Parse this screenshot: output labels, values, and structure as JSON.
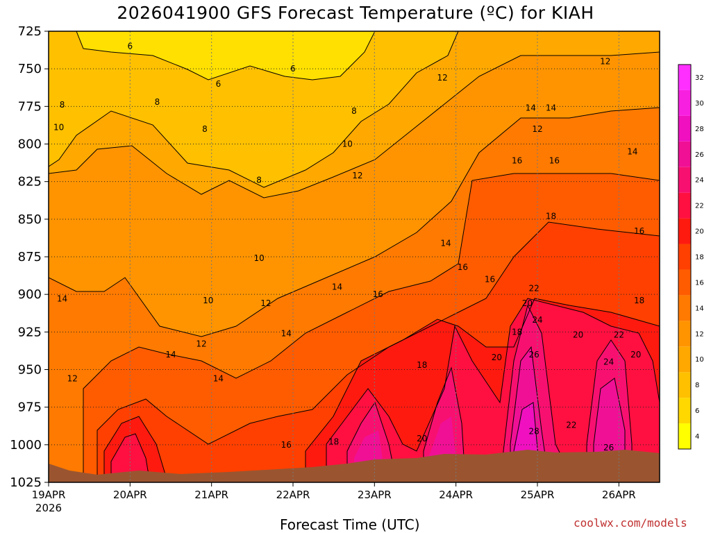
{
  "chart_data": {
    "type": "heatmap",
    "title": "2026041900 GFS Forecast Temperature (ºC) for KIAH",
    "xlabel": "Forecast Time (UTC)",
    "ylabel": "",
    "credit": "coolwx.com/models",
    "y_axis": {
      "scale": "pressure",
      "range": [
        725,
        1025
      ],
      "inverted": true,
      "ticks": [
        725,
        750,
        775,
        800,
        825,
        850,
        875,
        900,
        925,
        950,
        975,
        1000,
        1025
      ]
    },
    "x_axis": {
      "range": [
        "2026-04-19T00",
        "2026-04-26T12"
      ],
      "ticks": [
        {
          "date": "2026-04-19",
          "label": "19APR",
          "sublabel": "2026"
        },
        {
          "date": "2026-04-20",
          "label": "20APR",
          "sublabel": ""
        },
        {
          "date": "2026-04-21",
          "label": "21APR",
          "sublabel": ""
        },
        {
          "date": "2026-04-22",
          "label": "22APR",
          "sublabel": ""
        },
        {
          "date": "2026-04-23",
          "label": "23APR",
          "sublabel": ""
        },
        {
          "date": "2026-04-24",
          "label": "24APR",
          "sublabel": ""
        },
        {
          "date": "2026-04-25",
          "label": "25APR",
          "sublabel": ""
        },
        {
          "date": "2026-04-26",
          "label": "26APR",
          "sublabel": ""
        }
      ]
    },
    "grid": true,
    "colorbar": {
      "placement": "right",
      "levels": [
        4,
        6,
        8,
        10,
        12,
        14,
        16,
        18,
        20,
        22,
        24,
        26,
        28,
        30,
        32
      ],
      "colors": [
        "#ffff00",
        "#ffd800",
        "#ffc000",
        "#ffa800",
        "#ff9400",
        "#ff7a00",
        "#ff5c00",
        "#ff4000",
        "#ff1a10",
        "#ff1040",
        "#f81070",
        "#f01095",
        "#f010c0",
        "#f820e0",
        "#ff30ff"
      ]
    },
    "terrain_color": "#9a5530",
    "series": [
      {
        "name": "",
        "temperature_c": [
          {
            "time": "2026-04-19T00",
            "p": 725,
            "t": 9
          },
          {
            "time": "2026-04-19T06",
            "p": 725,
            "t": 6
          },
          {
            "time": "2026-04-20T12",
            "p": 725,
            "t": 5
          },
          {
            "time": "2026-04-21T12",
            "p": 725,
            "t": 5
          },
          {
            "time": "2026-04-22T12",
            "p": 725,
            "t": 5
          },
          {
            "time": "2026-04-23T12",
            "p": 725,
            "t": 9
          },
          {
            "time": "2026-04-24T12",
            "p": 725,
            "t": 11
          },
          {
            "time": "2026-04-25T12",
            "p": 725,
            "t": 11
          },
          {
            "time": "2026-04-26T12",
            "p": 725,
            "t": 12
          },
          {
            "time": "2026-04-19T12",
            "p": 850,
            "t": 13
          },
          {
            "time": "2026-04-20T12",
            "p": 850,
            "t": 12
          },
          {
            "time": "2026-04-21T12",
            "p": 850,
            "t": 10
          },
          {
            "time": "2026-04-22T12",
            "p": 850,
            "t": 12
          },
          {
            "time": "2026-04-23T12",
            "p": 850,
            "t": 14
          },
          {
            "time": "2026-04-24T12",
            "p": 850,
            "t": 17
          },
          {
            "time": "2026-04-25T12",
            "p": 850,
            "t": 18
          },
          {
            "time": "2026-04-26T12",
            "p": 850,
            "t": 17
          },
          {
            "time": "2026-04-19T12",
            "p": 975,
            "t": 12
          },
          {
            "time": "2026-04-20T00",
            "p": 1000,
            "t": 20
          },
          {
            "time": "2026-04-21T12",
            "p": 975,
            "t": 14
          },
          {
            "time": "2026-04-22T12",
            "p": 975,
            "t": 16
          },
          {
            "time": "2026-04-23T00",
            "p": 1000,
            "t": 22
          },
          {
            "time": "2026-04-24T00",
            "p": 1000,
            "t": 24
          },
          {
            "time": "2026-04-25T00",
            "p": 1000,
            "t": 28
          },
          {
            "time": "2026-04-26T00",
            "p": 1000,
            "t": 26
          }
        ]
      }
    ],
    "contour_labels": [
      {
        "time": "2026-04-20T00",
        "p": 735,
        "label": "6"
      },
      {
        "time": "2026-04-22T00",
        "p": 750,
        "label": "6"
      },
      {
        "time": "2026-04-21T02",
        "p": 760,
        "label": "6"
      },
      {
        "time": "2026-04-19T04",
        "p": 774,
        "label": "8"
      },
      {
        "time": "2026-04-20T08",
        "p": 772,
        "label": "8"
      },
      {
        "time": "2026-04-20T22",
        "p": 790,
        "label": "8"
      },
      {
        "time": "2026-04-22T18",
        "p": 778,
        "label": "8"
      },
      {
        "time": "2026-04-21T14",
        "p": 824,
        "label": "8"
      },
      {
        "time": "2026-04-19T03",
        "p": 789,
        "label": "10"
      },
      {
        "time": "2026-04-22T16",
        "p": 800,
        "label": "10"
      },
      {
        "time": "2026-04-21T14",
        "p": 876,
        "label": "10"
      },
      {
        "time": "2026-04-20T23",
        "p": 904,
        "label": "10"
      },
      {
        "time": "2026-04-23T20",
        "p": 756,
        "label": "12"
      },
      {
        "time": "2026-04-25T20",
        "p": 745,
        "label": "12"
      },
      {
        "time": "2026-04-25T00",
        "p": 790,
        "label": "12"
      },
      {
        "time": "2026-04-22T19",
        "p": 821,
        "label": "12"
      },
      {
        "time": "2026-04-21T16",
        "p": 906,
        "label": "12"
      },
      {
        "time": "2026-04-20T21",
        "p": 933,
        "label": "12"
      },
      {
        "time": "2026-04-19T07",
        "p": 956,
        "label": "12"
      },
      {
        "time": "2026-04-24T22",
        "p": 776,
        "label": "14"
      },
      {
        "time": "2026-04-25T04",
        "p": 776,
        "label": "14"
      },
      {
        "time": "2026-04-26T04",
        "p": 805,
        "label": "14"
      },
      {
        "time": "2026-04-23T21",
        "p": 866,
        "label": "14"
      },
      {
        "time": "2026-04-22T13",
        "p": 895,
        "label": "14"
      },
      {
        "time": "2026-04-21T22",
        "p": 926,
        "label": "14"
      },
      {
        "time": "2026-04-20T12",
        "p": 940,
        "label": "14"
      },
      {
        "time": "2026-04-21T02",
        "p": 956,
        "label": "14"
      },
      {
        "time": "2026-04-19T04",
        "p": 903,
        "label": "14"
      },
      {
        "time": "2026-04-24T18",
        "p": 811,
        "label": "16"
      },
      {
        "time": "2026-04-25T05",
        "p": 811,
        "label": "16"
      },
      {
        "time": "2026-04-24T02",
        "p": 882,
        "label": "16"
      },
      {
        "time": "2026-04-24T10",
        "p": 890,
        "label": "16"
      },
      {
        "time": "2026-04-23T01",
        "p": 900,
        "label": "16"
      },
      {
        "time": "2026-04-26T06",
        "p": 858,
        "label": "16"
      },
      {
        "time": "2026-04-21T22",
        "p": 1000,
        "label": "16"
      },
      {
        "time": "2026-04-25T04",
        "p": 848,
        "label": "18"
      },
      {
        "time": "2026-04-23T14",
        "p": 947,
        "label": "18"
      },
      {
        "time": "2026-04-26T06",
        "p": 904,
        "label": "18"
      },
      {
        "time": "2026-04-24T18",
        "p": 925,
        "label": "18"
      },
      {
        "time": "2026-04-22T12",
        "p": 998,
        "label": "18"
      },
      {
        "time": "2026-04-24T12",
        "p": 942,
        "label": "20"
      },
      {
        "time": "2026-04-24T21",
        "p": 906,
        "label": "20"
      },
      {
        "time": "2026-04-25T12",
        "p": 927,
        "label": "20"
      },
      {
        "time": "2026-04-26T05",
        "p": 940,
        "label": "20"
      },
      {
        "time": "2026-04-23T14",
        "p": 996,
        "label": "20"
      },
      {
        "time": "2026-04-24T23",
        "p": 896,
        "label": "22"
      },
      {
        "time": "2026-04-25T10",
        "p": 987,
        "label": "22"
      },
      {
        "time": "2026-04-26T00",
        "p": 927,
        "label": "22"
      },
      {
        "time": "2026-04-25T00",
        "p": 917,
        "label": "24"
      },
      {
        "time": "2026-04-25T21",
        "p": 945,
        "label": "24"
      },
      {
        "time": "2026-04-24T23",
        "p": 940,
        "label": "26"
      },
      {
        "time": "2026-04-25T21",
        "p": 1002,
        "label": "26"
      },
      {
        "time": "2026-04-24T23",
        "p": 991,
        "label": "28"
      }
    ]
  }
}
